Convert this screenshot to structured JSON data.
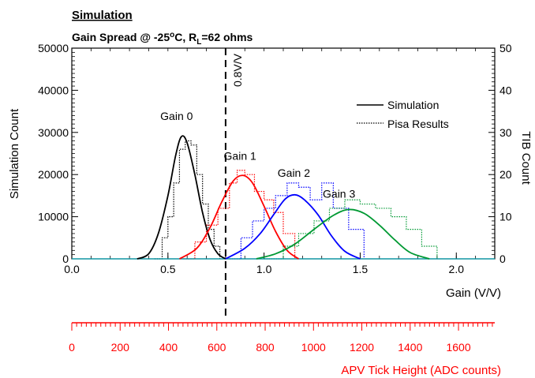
{
  "header": {
    "title": "Simulation",
    "subtitle_main": "Gain Spread @ -25",
    "subtitle_deg": "o",
    "subtitle_c": "C, R",
    "subtitle_sub": "L",
    "subtitle_tail": "=62 ohms"
  },
  "chart_data": {
    "type": "line",
    "title": "Simulation",
    "subtitle": "Gain Spread @ -25°C, RL=62 ohms",
    "xlabel": "Gain (V/V)",
    "ylabel_left": "Simulation Count",
    "ylabel_right": "TIB Count",
    "xlabel_secondary": "APV Tick Height (ADC counts)",
    "xlim": [
      0.0,
      2.2
    ],
    "ylim_left": [
      0,
      50000
    ],
    "ylim_right": [
      0,
      50
    ],
    "x_ticks": [
      "0.0",
      "0.5",
      "1.0",
      "1.5",
      "2.0"
    ],
    "y_left_ticks": [
      "0",
      "10000",
      "20000",
      "30000",
      "40000",
      "50000"
    ],
    "y_right_ticks": [
      "0",
      "10",
      "20",
      "30",
      "40",
      "50"
    ],
    "secondary_axis": {
      "range": [
        0,
        1750
      ],
      "ticks": [
        "0",
        "200",
        "400",
        "600",
        "800",
        "1000",
        "1200",
        "1400",
        "1600"
      ]
    },
    "reference_line": {
      "x": 0.8,
      "label": "0.8V/V"
    },
    "legend": {
      "position": "top-right",
      "entries": [
        {
          "label": "Simulation",
          "style": "solid"
        },
        {
          "label": "Pisa Results",
          "style": "dotted"
        }
      ]
    },
    "grid": false,
    "series": [
      {
        "label": "Gain 0",
        "color": "#000000",
        "x": [
          0.34,
          0.4,
          0.45,
          0.5,
          0.54,
          0.57,
          0.6,
          0.64,
          0.68,
          0.72,
          0.76,
          0.8
        ],
        "y": [
          0,
          1200,
          6000,
          15000,
          24500,
          29000,
          27500,
          20000,
          11000,
          4500,
          1200,
          0
        ]
      },
      {
        "label": "Gain 1",
        "color": "#ff0000",
        "x": [
          0.56,
          0.65,
          0.72,
          0.78,
          0.84,
          0.89,
          0.94,
          1.0,
          1.06,
          1.12,
          1.18
        ],
        "y": [
          0,
          2500,
          7500,
          13500,
          18500,
          19800,
          18000,
          12500,
          6500,
          2000,
          0
        ]
      },
      {
        "label": "Gain 2",
        "color": "#0000ff",
        "x": [
          0.8,
          0.9,
          0.98,
          1.05,
          1.11,
          1.16,
          1.21,
          1.28,
          1.35,
          1.42,
          1.5
        ],
        "y": [
          0,
          2500,
          6000,
          10500,
          14200,
          15200,
          14000,
          10500,
          5500,
          1800,
          0
        ]
      },
      {
        "label": "Gain 3",
        "color": "#009933",
        "x": [
          0.96,
          1.06,
          1.16,
          1.26,
          1.36,
          1.44,
          1.52,
          1.6,
          1.68,
          1.76,
          1.86
        ],
        "y": [
          0,
          1200,
          3500,
          7000,
          10300,
          11700,
          10800,
          8000,
          4500,
          1500,
          0
        ]
      }
    ],
    "pisa_results": [
      {
        "color": "#000000",
        "x": [
          0.43,
          0.47,
          0.5,
          0.53,
          0.56,
          0.59,
          0.62,
          0.65,
          0.68,
          0.71,
          0.74,
          0.77
        ],
        "y": [
          0,
          5,
          10,
          18,
          26,
          28,
          27,
          20,
          13,
          7,
          3,
          0
        ]
      },
      {
        "color": "#ff0000",
        "x": [
          0.58,
          0.64,
          0.7,
          0.76,
          0.82,
          0.86,
          0.9,
          0.95,
          1.0,
          1.05,
          1.1,
          1.16
        ],
        "y": [
          0,
          4,
          8,
          12,
          18,
          21,
          20,
          16,
          14,
          11,
          6,
          0
        ]
      },
      {
        "color": "#0000ff",
        "x": [
          0.82,
          0.88,
          0.94,
          1.0,
          1.06,
          1.12,
          1.18,
          1.24,
          1.3,
          1.36,
          1.44,
          1.52
        ],
        "y": [
          0,
          5,
          9,
          12,
          15,
          18,
          17,
          14,
          18,
          12,
          7,
          0
        ]
      },
      {
        "color": "#009933",
        "x": [
          1.0,
          1.1,
          1.18,
          1.26,
          1.34,
          1.42,
          1.5,
          1.58,
          1.66,
          1.74,
          1.82,
          1.9
        ],
        "y": [
          0,
          3,
          6,
          9,
          12,
          14,
          13,
          12,
          10,
          7,
          3,
          0
        ]
      }
    ]
  }
}
